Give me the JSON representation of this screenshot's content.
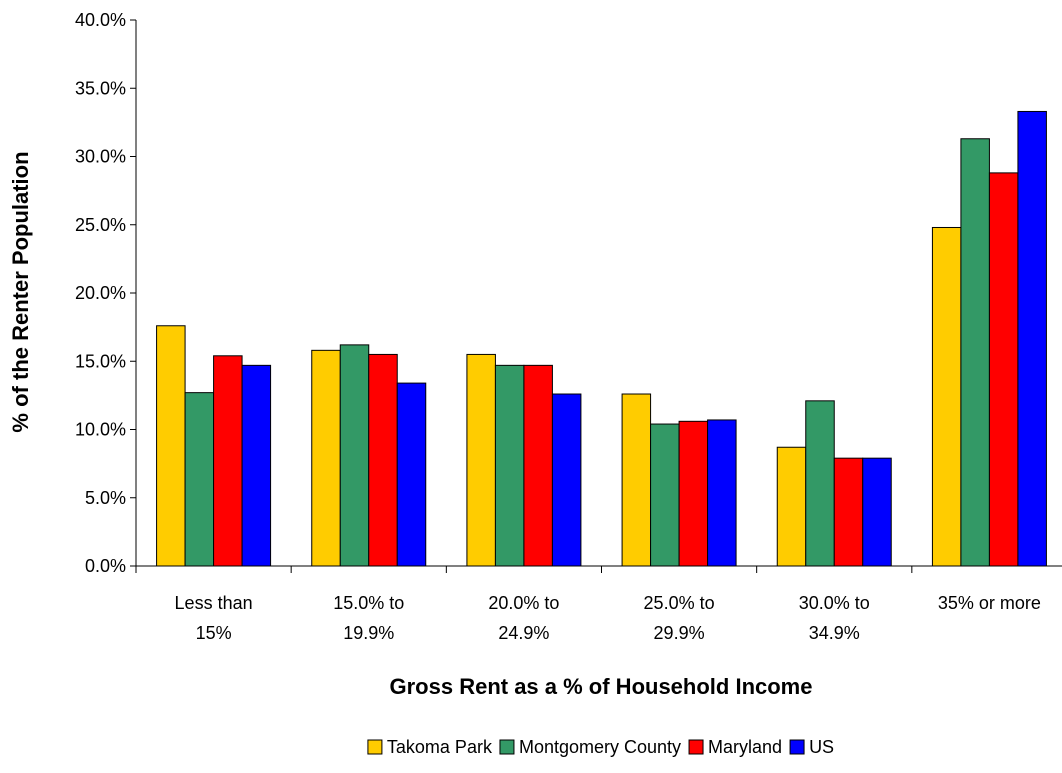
{
  "chart_data": {
    "type": "bar",
    "title": "",
    "xlabel": "Gross Rent as a % of Household Income",
    "ylabel": "% of the Renter Population",
    "categories": [
      [
        "Less than",
        "15%"
      ],
      [
        "15.0% to",
        "19.9%"
      ],
      [
        "20.0% to",
        "24.9%"
      ],
      [
        "25.0% to",
        "29.9%"
      ],
      [
        "30.0% to",
        "34.9%"
      ],
      [
        "35% or more"
      ]
    ],
    "y_ticks": [
      "0.0%",
      "5.0%",
      "10.0%",
      "15.0%",
      "20.0%",
      "25.0%",
      "30.0%",
      "35.0%",
      "40.0%"
    ],
    "ylim": [
      0,
      40
    ],
    "grid": false,
    "legend_position": "bottom",
    "series": [
      {
        "name": "Takoma Park",
        "color": "#FFCC00",
        "values": [
          17.6,
          15.8,
          15.5,
          12.6,
          8.7,
          24.8
        ]
      },
      {
        "name": "Montgomery County",
        "color": "#339966",
        "values": [
          12.7,
          16.2,
          14.7,
          10.4,
          12.1,
          31.3
        ]
      },
      {
        "name": "Maryland",
        "color": "#FF0000",
        "values": [
          15.4,
          15.5,
          14.7,
          10.6,
          7.9,
          28.8
        ]
      },
      {
        "name": "US",
        "color": "#0000FF",
        "values": [
          14.7,
          13.4,
          12.6,
          10.7,
          7.9,
          33.3
        ]
      }
    ]
  }
}
